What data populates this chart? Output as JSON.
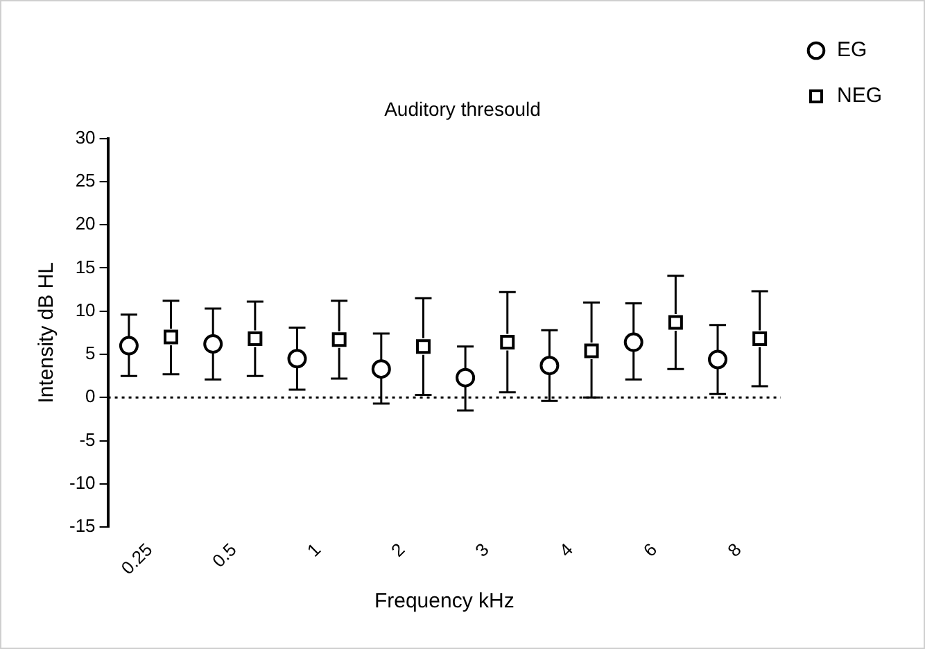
{
  "chart_data": {
    "type": "scatter",
    "title": "Auditory thresould",
    "xlabel": "Frequency kHz",
    "ylabel": "Intensity dB HL",
    "categories": [
      "0.25",
      "0.5",
      "1",
      "2",
      "3",
      "4",
      "6",
      "8"
    ],
    "series": [
      {
        "name": "EG",
        "color": "#000000",
        "marker": "circle",
        "values": [
          6,
          6.2,
          4.5,
          3.3,
          2.3,
          3.7,
          6.4,
          4.4
        ],
        "errors": [
          [
            2.5,
            9.6
          ],
          [
            2.1,
            10.3
          ],
          [
            0.9,
            8.1
          ],
          [
            -0.7,
            7.4
          ],
          [
            -1.5,
            5.9
          ],
          [
            -0.4,
            7.8
          ],
          [
            2.1,
            10.9
          ],
          [
            0.4,
            8.4
          ]
        ]
      },
      {
        "name": "NEG",
        "color": "#000000",
        "marker": "square",
        "values": [
          7,
          6.8,
          6.7,
          5.9,
          6.4,
          5.4,
          8.7,
          6.8
        ],
        "errors": [
          [
            2.7,
            11.2
          ],
          [
            2.5,
            11.1
          ],
          [
            2.2,
            11.2
          ],
          [
            0.3,
            11.5
          ],
          [
            0.6,
            12.2
          ],
          [
            0,
            11
          ],
          [
            3.3,
            14.1
          ],
          [
            1.3,
            12.3
          ]
        ]
      }
    ],
    "ylim": [
      -15,
      30
    ],
    "yticks": [
      -15,
      -10,
      -5,
      0,
      5,
      10,
      15,
      20,
      25,
      30
    ],
    "grid": false,
    "legend": "top right",
    "ref_lines": [
      {
        "axis": "y",
        "value": 0,
        "line_style": "dotted",
        "color": "#000000"
      }
    ]
  }
}
